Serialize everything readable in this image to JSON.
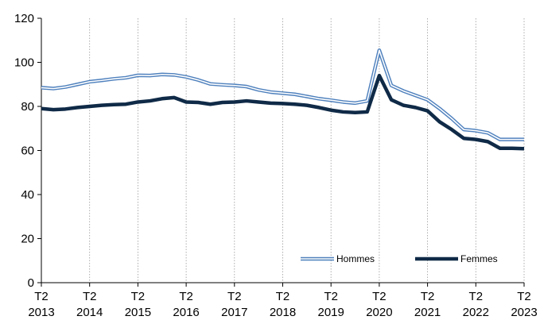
{
  "chart_data": {
    "type": "line",
    "y_ticks": [
      "0",
      "20",
      "40",
      "60",
      "80",
      "100",
      "120"
    ],
    "ylim": [
      0,
      120
    ],
    "grid": "vertical dotted",
    "legend_position": "bottom-right",
    "x_ticks": [
      {
        "q": "T2",
        "year": "2013"
      },
      {
        "q": "T2",
        "year": "2014"
      },
      {
        "q": "T2",
        "year": "2015"
      },
      {
        "q": "T2",
        "year": "2016"
      },
      {
        "q": "T2",
        "year": "2017"
      },
      {
        "q": "T2",
        "year": "2018"
      },
      {
        "q": "T2",
        "year": "2019"
      },
      {
        "q": "T2",
        "year": "2020"
      },
      {
        "q": "T2",
        "year": "2021"
      },
      {
        "q": "T2",
        "year": "2022"
      },
      {
        "q": "T2",
        "year": "2023"
      }
    ],
    "x": [
      "2013-T2",
      "2013-T3",
      "2013-T4",
      "2014-T1",
      "2014-T2",
      "2014-T3",
      "2014-T4",
      "2015-T1",
      "2015-T2",
      "2015-T3",
      "2015-T4",
      "2016-T1",
      "2016-T2",
      "2016-T3",
      "2016-T4",
      "2017-T1",
      "2017-T2",
      "2017-T3",
      "2017-T4",
      "2018-T1",
      "2018-T2",
      "2018-T3",
      "2018-T4",
      "2019-T1",
      "2019-T2",
      "2019-T3",
      "2019-T4",
      "2020-T1",
      "2020-T2",
      "2020-T3",
      "2020-T4",
      "2021-T1",
      "2021-T2",
      "2021-T3",
      "2021-T4",
      "2022-T1",
      "2022-T2",
      "2022-T3",
      "2022-T4",
      "2023-T1",
      "2023-T2"
    ],
    "series": [
      {
        "name": "Hommes",
        "color": "#4f81bd",
        "style": "double",
        "values": [
          88.5,
          88.1,
          88.8,
          90.0,
          91.2,
          91.8,
          92.5,
          93.0,
          94.1,
          94.0,
          94.5,
          94.3,
          93.4,
          92.0,
          90.2,
          89.8,
          89.5,
          89.0,
          87.5,
          86.5,
          86.0,
          85.5,
          84.5,
          83.5,
          82.8,
          82.0,
          81.5,
          82.5,
          105.5,
          89.5,
          87.0,
          85.0,
          83.0,
          79.0,
          74.5,
          69.5,
          69.0,
          68.0,
          65.0,
          65.0,
          65.0
        ]
      },
      {
        "name": "Femmes",
        "color": "#0f2a47",
        "style": "solid",
        "values": [
          79.0,
          78.5,
          78.8,
          79.5,
          80.0,
          80.5,
          80.8,
          81.0,
          82.0,
          82.5,
          83.5,
          84.0,
          82.0,
          81.8,
          81.0,
          81.8,
          82.0,
          82.5,
          82.0,
          81.5,
          81.3,
          81.0,
          80.5,
          79.5,
          78.3,
          77.5,
          77.2,
          77.5,
          94.0,
          83.0,
          80.5,
          79.5,
          78.0,
          73.0,
          69.5,
          65.5,
          65.0,
          64.0,
          61.0,
          61.0,
          60.8
        ]
      }
    ]
  }
}
